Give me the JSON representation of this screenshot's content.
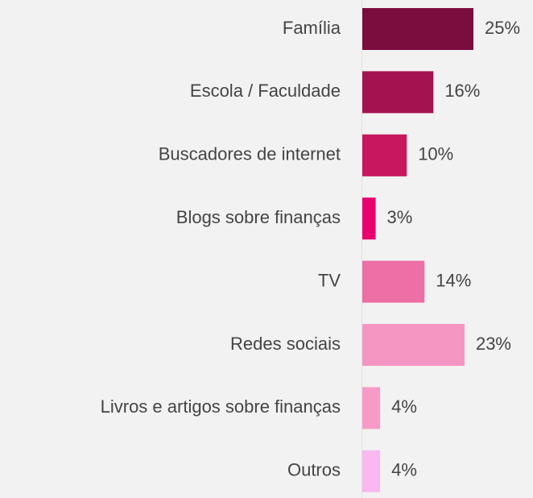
{
  "chart_data": {
    "type": "bar",
    "orientation": "horizontal",
    "categories": [
      "Família",
      "Escola / Faculdade",
      "Buscadores de internet",
      "Blogs sobre finanças",
      "TV",
      "Redes sociais",
      "Livros e artigos sobre finanças",
      "Outros"
    ],
    "values": [
      25,
      16,
      10,
      3,
      14,
      23,
      4,
      4
    ],
    "value_labels": [
      "25%",
      "16%",
      "10%",
      "3%",
      "14%",
      "23%",
      "4%",
      "4%"
    ],
    "colors": [
      "#7b0d3e",
      "#a3134f",
      "#c8175f",
      "#e8006f",
      "#ec6fa5",
      "#f595c1",
      "#f79bc6",
      "#f9b8f2"
    ]
  }
}
